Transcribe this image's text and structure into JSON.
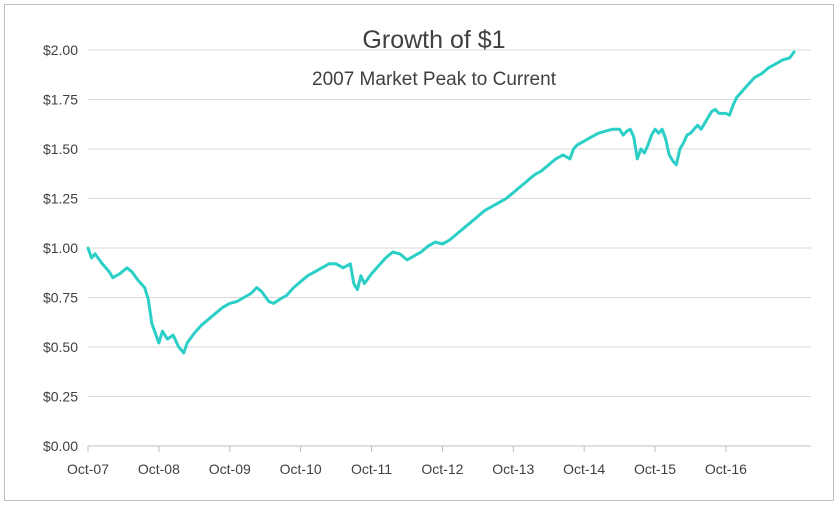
{
  "chart_data": {
    "type": "line",
    "title": "Growth of $1",
    "subtitle": "2007 Market Peak to Current",
    "xlabel": "",
    "ylabel": "",
    "ylim": [
      0,
      2.0
    ],
    "xlim": [
      0,
      10.2
    ],
    "grid": "horizontal",
    "legend": "none",
    "y_ticks": [
      {
        "value": 0.0,
        "label": "$0.00"
      },
      {
        "value": 0.25,
        "label": "$0.25"
      },
      {
        "value": 0.5,
        "label": "$0.50"
      },
      {
        "value": 0.75,
        "label": "$0.75"
      },
      {
        "value": 1.0,
        "label": "$1.00"
      },
      {
        "value": 1.25,
        "label": "$1.25"
      },
      {
        "value": 1.5,
        "label": "$1.50"
      },
      {
        "value": 1.75,
        "label": "$1.75"
      },
      {
        "value": 2.0,
        "label": "$2.00"
      }
    ],
    "x_ticks": [
      {
        "value": 0,
        "label": "Oct-07"
      },
      {
        "value": 1,
        "label": "Oct-08"
      },
      {
        "value": 2,
        "label": "Oct-09"
      },
      {
        "value": 3,
        "label": "Oct-10"
      },
      {
        "value": 4,
        "label": "Oct-11"
      },
      {
        "value": 5,
        "label": "Oct-12"
      },
      {
        "value": 6,
        "label": "Oct-13"
      },
      {
        "value": 7,
        "label": "Oct-14"
      },
      {
        "value": 8,
        "label": "Oct-15"
      },
      {
        "value": 9,
        "label": "Oct-16"
      }
    ],
    "series": [
      {
        "name": "Growth of $1",
        "color": "#2bcfc6",
        "points": [
          [
            0.0,
            1.0
          ],
          [
            0.05,
            0.95
          ],
          [
            0.1,
            0.97
          ],
          [
            0.2,
            0.92
          ],
          [
            0.3,
            0.88
          ],
          [
            0.35,
            0.85
          ],
          [
            0.45,
            0.87
          ],
          [
            0.55,
            0.9
          ],
          [
            0.62,
            0.88
          ],
          [
            0.7,
            0.84
          ],
          [
            0.8,
            0.8
          ],
          [
            0.85,
            0.74
          ],
          [
            0.9,
            0.62
          ],
          [
            0.95,
            0.57
          ],
          [
            1.0,
            0.52
          ],
          [
            1.05,
            0.58
          ],
          [
            1.12,
            0.54
          ],
          [
            1.2,
            0.56
          ],
          [
            1.28,
            0.5
          ],
          [
            1.35,
            0.47
          ],
          [
            1.4,
            0.52
          ],
          [
            1.5,
            0.57
          ],
          [
            1.6,
            0.61
          ],
          [
            1.7,
            0.64
          ],
          [
            1.8,
            0.67
          ],
          [
            1.9,
            0.7
          ],
          [
            2.0,
            0.72
          ],
          [
            2.1,
            0.73
          ],
          [
            2.2,
            0.75
          ],
          [
            2.3,
            0.77
          ],
          [
            2.38,
            0.8
          ],
          [
            2.45,
            0.78
          ],
          [
            2.55,
            0.73
          ],
          [
            2.62,
            0.72
          ],
          [
            2.7,
            0.74
          ],
          [
            2.8,
            0.76
          ],
          [
            2.9,
            0.8
          ],
          [
            3.0,
            0.83
          ],
          [
            3.1,
            0.86
          ],
          [
            3.2,
            0.88
          ],
          [
            3.3,
            0.9
          ],
          [
            3.4,
            0.92
          ],
          [
            3.5,
            0.92
          ],
          [
            3.6,
            0.9
          ],
          [
            3.7,
            0.92
          ],
          [
            3.75,
            0.82
          ],
          [
            3.8,
            0.79
          ],
          [
            3.85,
            0.86
          ],
          [
            3.9,
            0.82
          ],
          [
            4.0,
            0.87
          ],
          [
            4.1,
            0.91
          ],
          [
            4.2,
            0.95
          ],
          [
            4.3,
            0.98
          ],
          [
            4.4,
            0.97
          ],
          [
            4.5,
            0.94
          ],
          [
            4.6,
            0.96
          ],
          [
            4.7,
            0.98
          ],
          [
            4.8,
            1.01
          ],
          [
            4.9,
            1.03
          ],
          [
            5.0,
            1.02
          ],
          [
            5.1,
            1.04
          ],
          [
            5.2,
            1.07
          ],
          [
            5.3,
            1.1
          ],
          [
            5.4,
            1.13
          ],
          [
            5.5,
            1.16
          ],
          [
            5.6,
            1.19
          ],
          [
            5.7,
            1.21
          ],
          [
            5.8,
            1.23
          ],
          [
            5.9,
            1.25
          ],
          [
            6.0,
            1.28
          ],
          [
            6.1,
            1.31
          ],
          [
            6.2,
            1.34
          ],
          [
            6.3,
            1.37
          ],
          [
            6.4,
            1.39
          ],
          [
            6.5,
            1.42
          ],
          [
            6.6,
            1.45
          ],
          [
            6.7,
            1.47
          ],
          [
            6.8,
            1.45
          ],
          [
            6.85,
            1.5
          ],
          [
            6.9,
            1.52
          ],
          [
            7.0,
            1.54
          ],
          [
            7.1,
            1.56
          ],
          [
            7.2,
            1.58
          ],
          [
            7.3,
            1.59
          ],
          [
            7.4,
            1.6
          ],
          [
            7.5,
            1.6
          ],
          [
            7.55,
            1.57
          ],
          [
            7.6,
            1.59
          ],
          [
            7.65,
            1.6
          ],
          [
            7.7,
            1.56
          ],
          [
            7.75,
            1.45
          ],
          [
            7.8,
            1.5
          ],
          [
            7.85,
            1.48
          ],
          [
            7.9,
            1.52
          ],
          [
            7.95,
            1.57
          ],
          [
            8.0,
            1.6
          ],
          [
            8.05,
            1.58
          ],
          [
            8.1,
            1.6
          ],
          [
            8.15,
            1.55
          ],
          [
            8.2,
            1.47
          ],
          [
            8.25,
            1.44
          ],
          [
            8.3,
            1.42
          ],
          [
            8.35,
            1.5
          ],
          [
            8.4,
            1.53
          ],
          [
            8.45,
            1.57
          ],
          [
            8.5,
            1.58
          ],
          [
            8.55,
            1.6
          ],
          [
            8.6,
            1.62
          ],
          [
            8.65,
            1.6
          ],
          [
            8.7,
            1.63
          ],
          [
            8.75,
            1.66
          ],
          [
            8.8,
            1.69
          ],
          [
            8.85,
            1.7
          ],
          [
            8.9,
            1.68
          ],
          [
            8.95,
            1.68
          ],
          [
            9.0,
            1.68
          ],
          [
            9.05,
            1.67
          ],
          [
            9.1,
            1.72
          ],
          [
            9.15,
            1.76
          ],
          [
            9.2,
            1.78
          ],
          [
            9.3,
            1.82
          ],
          [
            9.4,
            1.86
          ],
          [
            9.5,
            1.88
          ],
          [
            9.6,
            1.91
          ],
          [
            9.7,
            1.93
          ],
          [
            9.8,
            1.95
          ],
          [
            9.9,
            1.96
          ],
          [
            9.96,
            1.99
          ]
        ]
      }
    ]
  }
}
